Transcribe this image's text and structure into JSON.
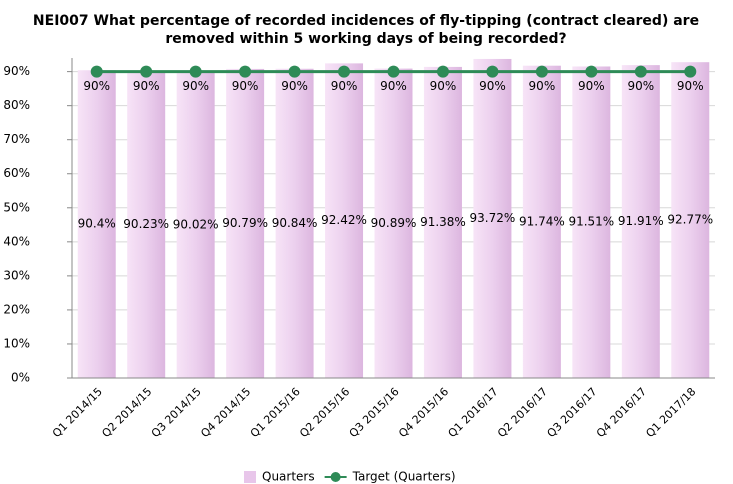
{
  "chart_data": {
    "type": "bar",
    "title": [
      "NEI007 What percentage of recorded incidences of fly-tipping (contract cleared) are",
      "removed within 5 working days of being recorded?"
    ],
    "categories": [
      "Q1 2014/15",
      "Q2 2014/15",
      "Q3 2014/15",
      "Q4 2014/15",
      "Q1 2015/16",
      "Q2 2015/16",
      "Q3 2015/16",
      "Q4 2015/16",
      "Q1 2016/17",
      "Q2 2016/17",
      "Q3 2016/17",
      "Q4 2016/17",
      "Q1 2017/18"
    ],
    "series": [
      {
        "name": "Quarters",
        "type": "bar",
        "color": "#e8c6ea",
        "values": [
          90.4,
          90.23,
          90.02,
          90.79,
          90.84,
          92.42,
          90.89,
          91.38,
          93.72,
          91.74,
          91.51,
          91.91,
          92.77
        ],
        "value_labels": [
          "90.4%",
          "90.23%",
          "90.02%",
          "90.79%",
          "90.84%",
          "92.42%",
          "90.89%",
          "91.38%",
          "93.72%",
          "91.74%",
          "91.51%",
          "91.91%",
          "92.77%"
        ]
      },
      {
        "name": "Target (Quarters)",
        "type": "line",
        "color": "#2e8b57",
        "values": [
          90,
          90,
          90,
          90,
          90,
          90,
          90,
          90,
          90,
          90,
          90,
          90,
          90
        ],
        "value_labels": [
          "90%",
          "90%",
          "90%",
          "90%",
          "90%",
          "90%",
          "90%",
          "90%",
          "90%",
          "90%",
          "90%",
          "90%",
          "90%"
        ]
      }
    ],
    "ylim": [
      0,
      94
    ],
    "yticks": [
      {
        "value": 0,
        "label": "0%"
      },
      {
        "value": 10,
        "label": "10%"
      },
      {
        "value": 20,
        "label": "20%"
      },
      {
        "value": 30,
        "label": "30%"
      },
      {
        "value": 40,
        "label": "40%"
      },
      {
        "value": 50,
        "label": "50%"
      },
      {
        "value": 60,
        "label": "60%"
      },
      {
        "value": 70,
        "label": "70%"
      },
      {
        "value": 80,
        "label": "80%"
      },
      {
        "value": 90,
        "label": "90%"
      }
    ],
    "grid": true,
    "legend": "bottom"
  }
}
